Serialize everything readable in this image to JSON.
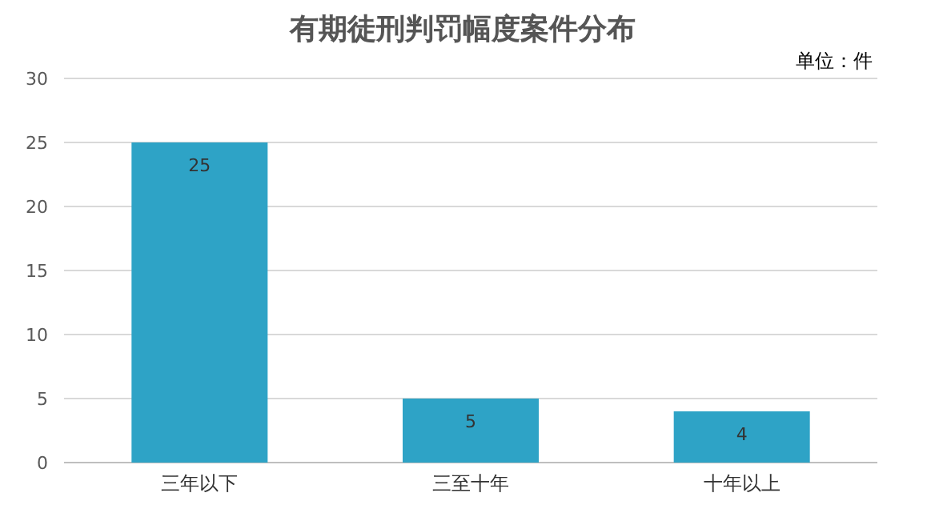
{
  "chart_data": {
    "type": "bar",
    "title": "有期徒刑判罚幅度案件分布",
    "annotations": [
      "单位：件"
    ],
    "categories": [
      "三年以下",
      "三至十年",
      "十年以上"
    ],
    "values": [
      25,
      5,
      4
    ],
    "color": "#2ea3c6",
    "data_labels": true,
    "ylim": [
      0,
      30
    ],
    "yticks": [
      0,
      5,
      10,
      15,
      20,
      25,
      30
    ],
    "grid": "y"
  }
}
